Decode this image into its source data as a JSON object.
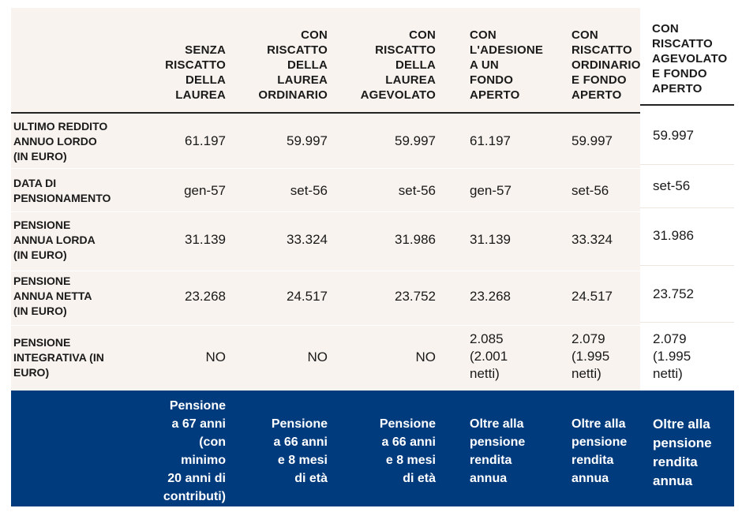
{
  "columns": [
    {
      "header": "SENZA\nRISCATTO\nDELLA\nLAUREA",
      "note": "Pensione\na 67 anni\n(con\nminimo\n20 anni di\ncontributi)"
    },
    {
      "header": "CON\nRISCATTO\nDELLA\nLAUREA\nORDINARIO",
      "note": "Pensione\na 66 anni\ne 8 mesi\ndi età"
    },
    {
      "header": "CON\nRISCATTO\nDELLA\nLAUREA\nAGEVOLATO",
      "note": "Pensione\na 66 anni\ne 8 mesi\ndi età"
    },
    {
      "header": "CON\nL'ADESIONE\nA UN\nFONDO\nAPERTO",
      "note": "Oltre alla\npensione\nrendita\nannua"
    },
    {
      "header": "CON\nRISCATTO\nORDINARIO\nE FONDO\nAPERTO",
      "note": "Oltre alla\npensione\nrendita\nannua"
    },
    {
      "header": "CON\nRISCATTO\nAGEVOLATO\nE FONDO\nAPERTO",
      "note": "Oltre alla\npensione\nrendita\nannua"
    }
  ],
  "rows": [
    {
      "label": "ULTIMO REDDITO\nANNUO LORDO\n(IN EURO)",
      "values": [
        "61.197",
        "59.997",
        "59.997",
        "61.197",
        "59.997",
        "59.997"
      ]
    },
    {
      "label": "DATA DI\nPENSIONAMENTO",
      "values": [
        "gen-57",
        "set-56",
        "set-56",
        "gen-57",
        "set-56",
        "set-56"
      ]
    },
    {
      "label": "PENSIONE\nANNUA LORDA\n(IN EURO)",
      "values": [
        "31.139",
        "33.324",
        "31.986",
        "31.139",
        "33.324",
        "31.986"
      ]
    },
    {
      "label": "PENSIONE\nANNUA NETTA\n(IN EURO)",
      "values": [
        "23.268",
        "24.517",
        "23.752",
        "23.268",
        "24.517",
        "23.752"
      ]
    },
    {
      "label": "PENSIONE\nINTEGRATIVA (IN\nEURO)",
      "values": [
        "NO",
        "NO",
        "NO",
        "2.085\n(2.001\nnetti)",
        "2.079\n(1.995\nnetti)",
        "2.079\n(1.995\nnetti)"
      ]
    }
  ]
}
